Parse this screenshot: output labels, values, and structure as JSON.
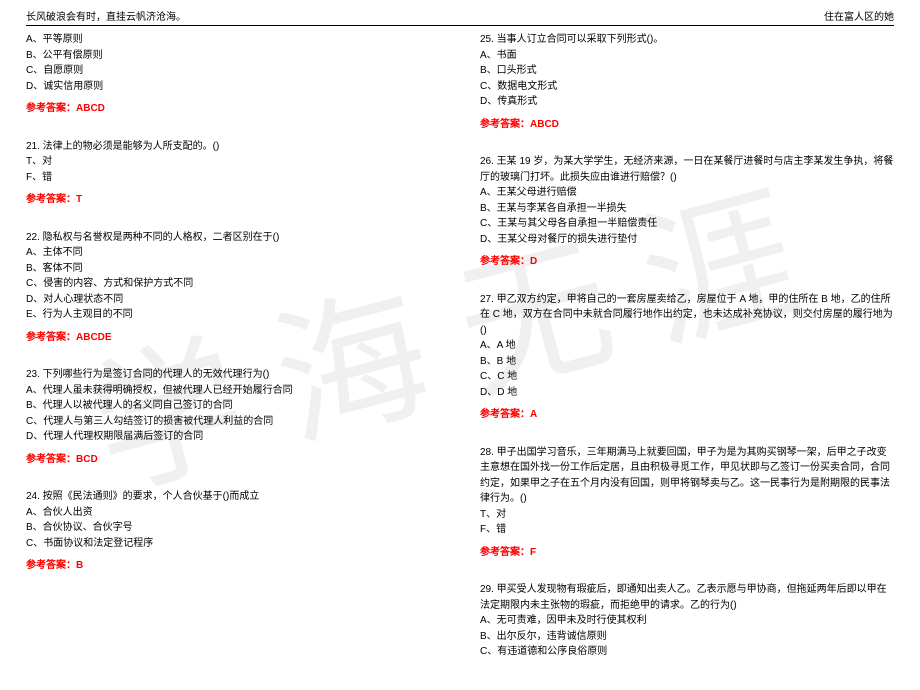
{
  "header": {
    "left": "长风破浪会有时，直挂云帆济沧海。",
    "right": "住在富人区的她"
  },
  "watermark": "学海无涯",
  "left_col": [
    {
      "stem": "",
      "opts": [
        "A、平等原则",
        "B、公平有偿原则",
        "C、自愿原则",
        "D、诚实信用原则"
      ],
      "ans": "参考答案：ABCD"
    },
    {
      "stem": "21. 法律上的物必须是能够为人所支配的。()",
      "opts": [
        "T、对",
        "F、错"
      ],
      "ans": "参考答案：T"
    },
    {
      "stem": "22. 隐私权与名誉权是两种不同的人格权，二者区别在于()",
      "opts": [
        "A、主体不同",
        "B、客体不同",
        "C、侵害的内容、方式和保护方式不同",
        "D、对人心理状态不同",
        "E、行为人主观目的不同"
      ],
      "ans": "参考答案：ABCDE"
    },
    {
      "stem": "23. 下列哪些行为是签订合同的代理人的无效代理行为()",
      "opts": [
        "A、代理人虽未获得明确授权，但被代理人已经开始履行合同",
        "B、代理人以被代理人的名义同自己签订的合同",
        "C、代理人与第三人勾结签订的损害被代理人利益的合同",
        "D、代理人代理权期限届满后签订的合同"
      ],
      "ans": "参考答案：BCD"
    },
    {
      "stem": "24. 按照《民法通则》的要求，个人合伙基于()而成立",
      "opts": [
        "A、合伙人出资",
        "B、合伙协议、合伙字号",
        "C、书面协议和法定登记程序"
      ],
      "ans": "参考答案：B"
    }
  ],
  "right_col": [
    {
      "stem": "25. 当事人订立合同可以采取下列形式()。",
      "opts": [
        "A、书面",
        "B、口头形式",
        "C、数据电文形式",
        "D、传真形式"
      ],
      "ans": "参考答案：ABCD"
    },
    {
      "stem": "26. 王某 19 岁，为某大学学生，无经济来源，一日在某餐厅进餐时与店主李某发生争执，将餐厅的玻璃门打坏。此损失应由谁进行赔偿？()",
      "opts": [
        "A、王某父母进行赔偿",
        "B、王某与李某各自承担一半损失",
        "C、王某与其父母各自承担一半赔偿责任",
        "D、王某父母对餐厅的损失进行垫付"
      ],
      "ans": "参考答案：D"
    },
    {
      "stem": "27. 甲乙双方约定，甲将自己的一套房屋卖给乙，房屋位于 A 地，甲的住所在 B 地，乙的住所在 C 地，双方在合同中未就合同履行地作出约定，也未达成补充协议，则交付房屋的履行地为()",
      "opts": [
        "A、A 地",
        "B、B 地",
        "C、C 地",
        "D、D 地"
      ],
      "ans": "参考答案：A"
    },
    {
      "stem": "28. 甲子出国学习音乐，三年期满马上就要回国，甲子为是为其购买钢琴一架，后甲之子改变主意想在国外找一份工作后定居，且由积极寻觅工作，甲见状即与乙签订一份买卖合同，合同约定，如果甲之子在五个月内没有回国，则甲将钢琴卖与乙。这一民事行为是附期限的民事法律行为。()",
      "opts": [
        "T、对",
        "F、错"
      ],
      "ans": "参考答案：F"
    },
    {
      "stem": "29. 甲买受人发现物有瑕疵后，即通知出卖人乙。乙表示愿与甲协商，但拖延两年后即以甲在法定期限内未主张物的瑕疵，而拒绝甲的请求。乙的行为()",
      "opts": [
        "A、无可责难，因甲未及时行使其权利",
        "B、出尔反尔，违背诚信原则",
        "C、有违道德和公序良俗原则"
      ],
      "ans": ""
    }
  ]
}
